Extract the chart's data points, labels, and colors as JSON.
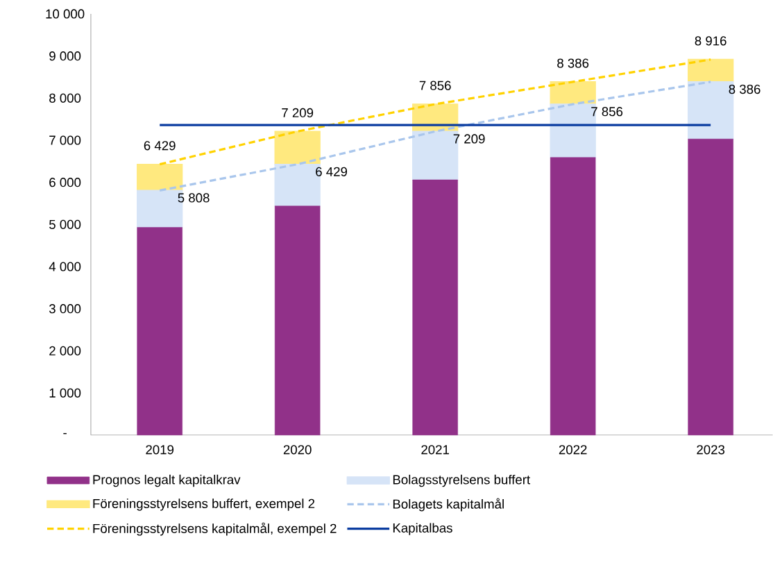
{
  "chart_data": {
    "type": "bar",
    "stacked": true,
    "legend": "bottom",
    "categories": [
      "2019",
      "2020",
      "2021",
      "2022",
      "2023"
    ],
    "ylim": [
      0,
      10000
    ],
    "yticks": [
      {
        "value": 0,
        "label": "-"
      },
      {
        "value": 1000,
        "label": "1 000"
      },
      {
        "value": 2000,
        "label": "2 000"
      },
      {
        "value": 3000,
        "label": "3 000"
      },
      {
        "value": 4000,
        "label": "4 000"
      },
      {
        "value": 5000,
        "label": "5 000"
      },
      {
        "value": 6000,
        "label": "6 000"
      },
      {
        "value": 7000,
        "label": "7 000"
      },
      {
        "value": 8000,
        "label": "8 000"
      },
      {
        "value": 9000,
        "label": "9 000"
      },
      {
        "value": 10000,
        "label": "10 000"
      }
    ],
    "series": [
      {
        "name": "Prognos legalt kapitalkrav",
        "color": "#913189",
        "values": [
          4930,
          5440,
          6060,
          6590,
          7030
        ]
      },
      {
        "name": "Bolagsstyrelsens buffert",
        "color": "#d6e4f7",
        "values": [
          880,
          990,
          1150,
          1270,
          1360
        ]
      },
      {
        "name": "Föreningsstyrelsens buffert, exempel 2",
        "color": "#ffe97f",
        "values": [
          620,
          780,
          650,
          530,
          530
        ]
      },
      {
        "name": "Bolagets kapitalmål",
        "type": "line",
        "color": "#a9c6ec",
        "line_style": "dashed",
        "values": [
          5808,
          6429,
          7209,
          7856,
          8386
        ],
        "value_labels": [
          "5 808",
          "6 429",
          "7 209",
          "7 856",
          "8 386"
        ]
      },
      {
        "name": "Föreningsstyrelsens kapitalmål, exempel 2",
        "type": "line",
        "color": "#ffd200",
        "line_style": "dashed",
        "values": [
          6429,
          7209,
          7856,
          8386,
          8916
        ],
        "value_labels": [
          "6 429",
          "7 209",
          "7 856",
          "8 386",
          "8 916"
        ]
      },
      {
        "name": "Kapitalbas",
        "type": "line",
        "color": "#0a3ca0",
        "line_style": "solid",
        "values": [
          7360,
          7360,
          7360,
          7360,
          7360
        ]
      }
    ]
  }
}
